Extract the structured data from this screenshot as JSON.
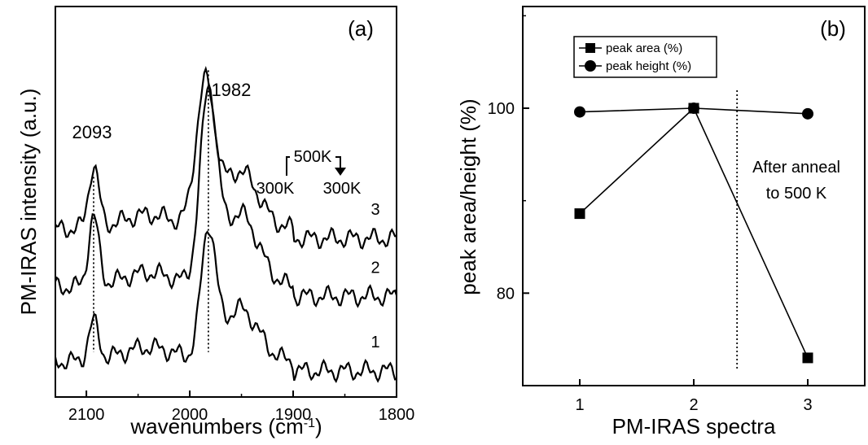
{
  "chart_data": [
    {
      "panel": "(a)",
      "type": "line",
      "xlabel": "wavenumbers (cm",
      "xlabel_sup": "-1",
      "xlabel_end": ")",
      "ylabel": "PM-IRAS intensity (a.u.)",
      "xlim": [
        2130,
        1800
      ],
      "x_reversed": true,
      "xticks": [
        2100,
        2000,
        1900,
        1800
      ],
      "yticks": [],
      "peaks": [
        {
          "label": "2093",
          "x": 2093
        },
        {
          "label": "1982",
          "x": 1982
        }
      ],
      "inset": {
        "top": "500K",
        "left": "300K",
        "right": "300K"
      },
      "series": [
        {
          "name": "1",
          "offset": 0,
          "peak_heights": [
            3.2,
            10.5
          ],
          "peak_widths": [
            5,
            7
          ]
        },
        {
          "name": "2",
          "offset": 6.3,
          "peak_heights": [
            5.8,
            15.5
          ],
          "peak_widths": [
            5,
            8
          ]
        },
        {
          "name": "3",
          "offset": 11.2,
          "peak_heights": [
            5.2,
            11.7
          ],
          "peak_widths": [
            5,
            9
          ]
        }
      ],
      "ylim": [
        -3,
        30
      ]
    },
    {
      "panel": "(b)",
      "type": "line",
      "xlabel": "PM-IRAS spectra",
      "ylabel": "peak area/height (%)",
      "x": [
        1,
        2,
        3
      ],
      "xlim": [
        0.5,
        3.5
      ],
      "ylim": [
        70,
        111
      ],
      "xticks": [
        1,
        2,
        3
      ],
      "yticks": [
        80,
        100
      ],
      "series": [
        {
          "name": "peak area (%)",
          "marker": "square",
          "values": [
            88.6,
            100,
            73.0
          ]
        },
        {
          "name": "peak height (%)",
          "marker": "circle",
          "values": [
            99.6,
            100,
            99.4
          ]
        }
      ],
      "annotation": [
        "After anneal",
        "to 500 K"
      ],
      "vline_x": 2.38,
      "legend": "top-left"
    }
  ]
}
